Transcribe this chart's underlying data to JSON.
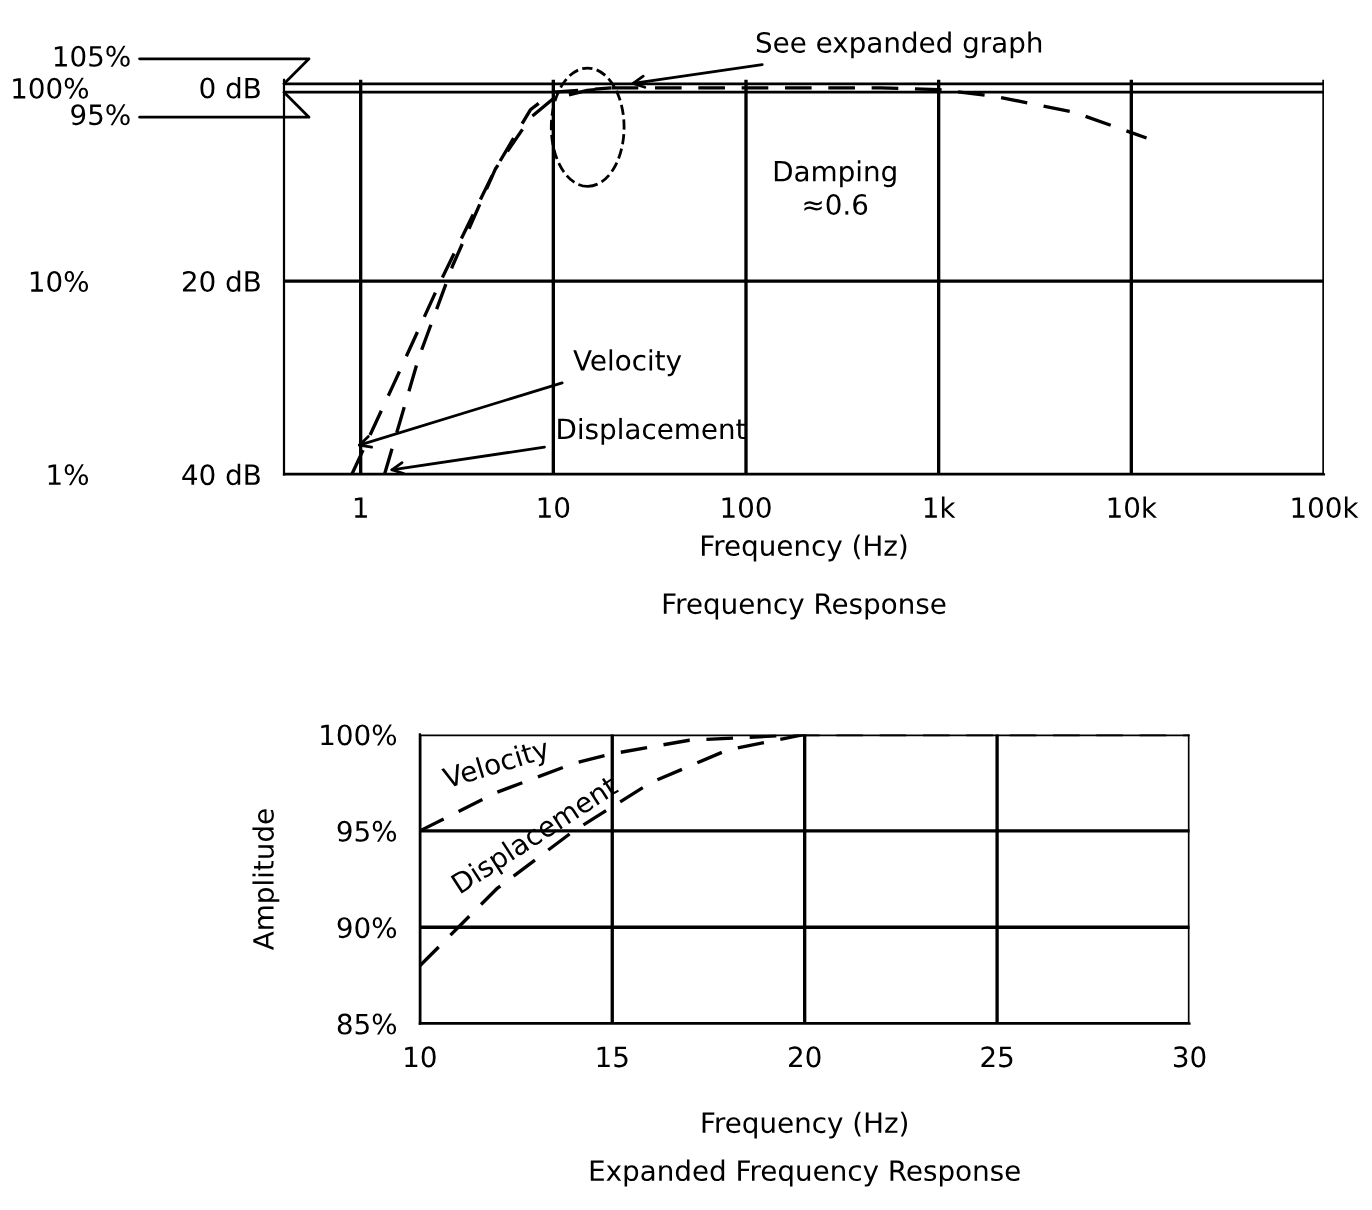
{
  "chart_data": [
    {
      "type": "line",
      "title": "Frequency Response",
      "xlabel": "Frequency (Hz)",
      "log": "xy",
      "grid": true,
      "legend": false,
      "line_style": "dashed",
      "xlim": [
        0.4,
        100000
      ],
      "xticks": [
        {
          "value": 1,
          "label": "1"
        },
        {
          "value": 10,
          "label": "10"
        },
        {
          "value": 100,
          "label": "100"
        },
        {
          "value": 1000,
          "label": "1k"
        },
        {
          "value": 10000,
          "label": "10k"
        },
        {
          "value": 100000,
          "label": "100k"
        }
      ],
      "ylim": [
        1,
        110
      ],
      "yticks": [
        {
          "value": 1,
          "label": "1%"
        },
        {
          "value": 10,
          "label": "10%"
        },
        {
          "value": 100,
          "label": "100%"
        }
      ],
      "y2lim": [
        40,
        -0.8
      ],
      "y2ticks": [
        {
          "value": 40,
          "label": "40 dB"
        },
        {
          "value": 20,
          "label": "20 dB"
        },
        {
          "value": 0,
          "label": "0 dB"
        }
      ],
      "ref_lines": [
        {
          "axis": "y",
          "value": 105,
          "label": "105%"
        },
        {
          "axis": "y",
          "value": 95,
          "label": "95%"
        }
      ],
      "series": [
        {
          "color": "#000000",
          "x": [
            0.9,
            1.5,
            2.6,
            5,
            7.6,
            10,
            20
          ],
          "values": [
            1,
            3,
            10,
            38,
            77,
            95,
            100
          ]
        },
        {
          "color": "#000000",
          "x": [
            1.33,
            2,
            3,
            5,
            7.6,
            10,
            15,
            20,
            100,
            500,
            1000,
            2000,
            5000,
            12000
          ],
          "values": [
            1,
            4,
            12,
            38,
            70,
            88,
            97,
            100,
            100,
            100,
            98,
            90,
            75,
            55
          ]
        }
      ],
      "annotations": [
        {
          "text": "See expanded graph",
          "x": 25,
          "y": 105
        },
        "Damping\n≈0.6",
        {
          "text": "Velocity",
          "x": 0.95,
          "y": 1.4
        },
        {
          "text": "Displacement",
          "x": 1.4,
          "y": 1.05
        }
      ]
    },
    {
      "type": "line",
      "title": "Expanded Frequency Response",
      "xlabel": "Frequency (Hz)",
      "ylabel": "Amplitude",
      "grid": true,
      "legend": false,
      "line_style": "dashed",
      "xlim": [
        10,
        30
      ],
      "xticks": [
        10,
        15,
        20,
        25,
        30
      ],
      "ylim": [
        85,
        100
      ],
      "yticks": [
        {
          "value": 85,
          "label": "85%"
        },
        {
          "value": 90,
          "label": "90%"
        },
        {
          "value": 95,
          "label": "95%"
        },
        {
          "value": 100,
          "label": "100%"
        }
      ],
      "series": [
        {
          "name": "Velocity",
          "color": "#000000",
          "x": [
            10,
            12,
            14,
            15,
            17,
            20,
            25,
            30
          ],
          "values": [
            95,
            97,
            98.5,
            99,
            99.7,
            100,
            100,
            100
          ]
        },
        {
          "name": "Displacement",
          "color": "#000000",
          "x": [
            10,
            11,
            12,
            14,
            16,
            18,
            20
          ],
          "values": [
            88,
            90,
            92,
            95,
            97.5,
            99.2,
            100
          ]
        }
      ]
    }
  ]
}
